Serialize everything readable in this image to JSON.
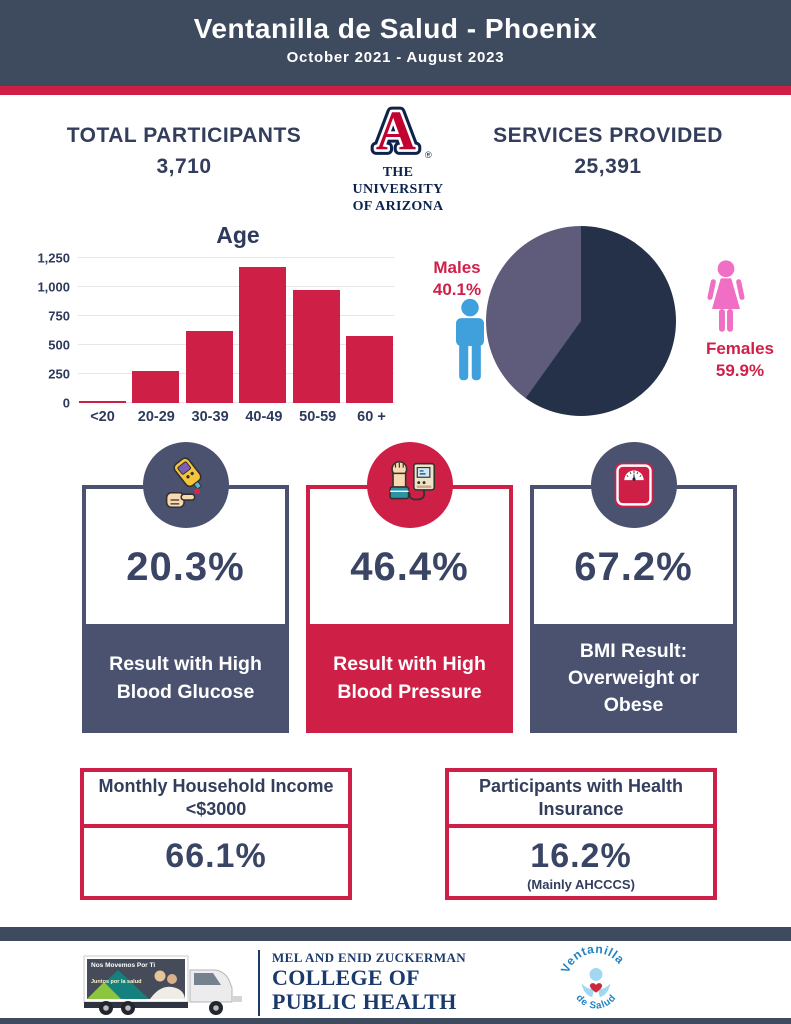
{
  "header": {
    "title": "Ventanilla de Salud - Phoenix",
    "subtitle": "October 2021 - August 2023"
  },
  "top_stats": {
    "participants_label": "TOTAL PARTICIPANTS",
    "participants_value": "3,710",
    "services_label": "SERVICES PROVIDED",
    "services_value": "25,391"
  },
  "university_logo": {
    "monogram": "A",
    "registered": "®",
    "wordmark_line1": "THE UNIVERSITY",
    "wordmark_line2": "OF ARIZONA"
  },
  "chart_data": [
    {
      "type": "bar",
      "title": "Age",
      "categories": [
        "<20",
        "20-29",
        "30-39",
        "40-49",
        "50-59",
        "60 +"
      ],
      "values": [
        15,
        275,
        620,
        1170,
        970,
        580
      ],
      "xlabel": "",
      "ylabel": "",
      "ylim": [
        0,
        1250
      ],
      "yticks": [
        0,
        250,
        500,
        750,
        1000,
        1250
      ],
      "ytick_labels": [
        "0",
        "250",
        "500",
        "750",
        "1,000",
        "1,250"
      ],
      "bar_color": "#ce2047",
      "grid": true,
      "legend": false
    },
    {
      "type": "pie",
      "start_angle_deg": 0,
      "direction": "clockwise",
      "legend": false,
      "slices": [
        {
          "label": "Females",
          "value": 59.9,
          "display": "59.9%",
          "color": "#253149"
        },
        {
          "label": "Males",
          "value": 40.1,
          "display": "40.1%",
          "color": "#5f5b7a"
        }
      ]
    }
  ],
  "result_cards": [
    {
      "value": "20.3%",
      "label": "Result with High Blood Glucose",
      "icon": "glucose-meter"
    },
    {
      "value": "46.4%",
      "label": "Result with High Blood Pressure",
      "icon": "blood-pressure-monitor"
    },
    {
      "value": "67.2%",
      "label": "BMI Result: Overweight or Obese",
      "icon": "weight-scale"
    }
  ],
  "stat_boxes": [
    {
      "title": "Monthly Household Income <$3000",
      "value": "66.1%",
      "note": ""
    },
    {
      "title": "Participants with Health Insurance",
      "value": "16.2%",
      "note": "(Mainly AHCCCS)"
    }
  ],
  "footer": {
    "college_line1": "MEL AND ENID ZUCKERMAN",
    "college_line2": "COLLEGE OF",
    "college_line3": "PUBLIC HEALTH",
    "truck_text_top": "Nos Movemos Por Ti",
    "truck_text_mid": "Juntos por la salud",
    "vds_arc_top": "Ventanilla",
    "vds_arc_bottom": "de Salud"
  },
  "colors": {
    "banner_navy": "#3e4a5e",
    "accent_red": "#ce2047",
    "text_navy": "#333d5c",
    "card_navy": "#4a5270",
    "pie_dark": "#253149",
    "pie_light": "#5f5b7a",
    "male_blue": "#3fa0dc",
    "female_pink": "#f06fc4",
    "ua_navy": "#0c234b",
    "ua_red": "#c10230"
  }
}
